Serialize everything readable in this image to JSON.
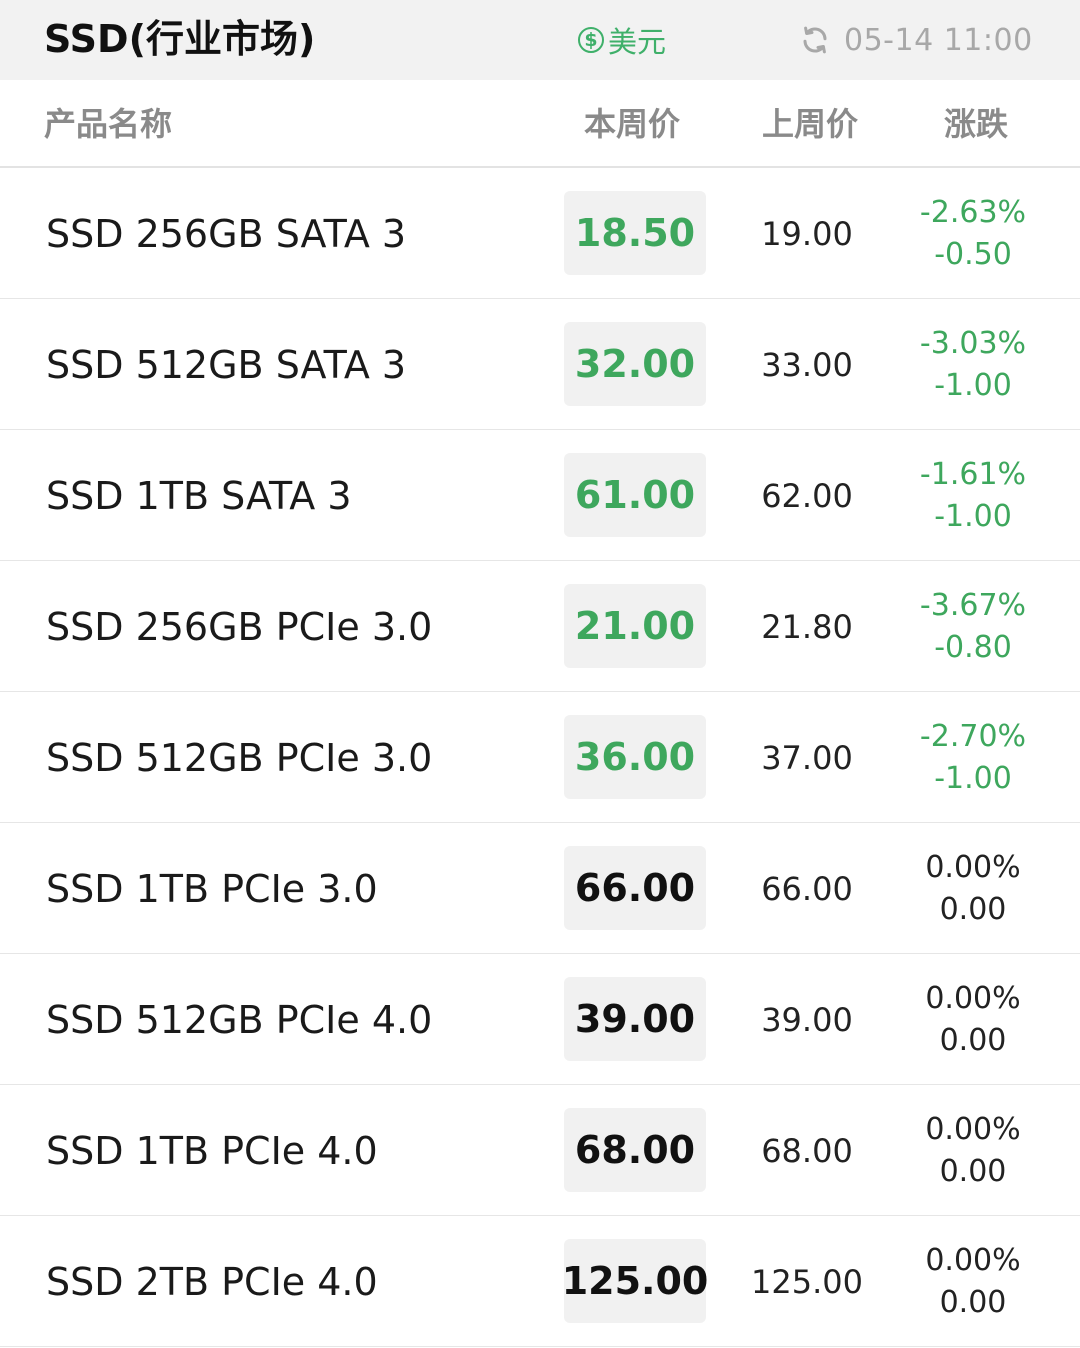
{
  "header": {
    "title": "SSD(行业市场)",
    "currency_symbol": "$",
    "currency_label": "美元",
    "updated_time": "05-14 11:00",
    "refresh_icon": "refresh-icon",
    "currency_icon": "dollar-coin-icon",
    "accent_color": "#3ea75d"
  },
  "columns": {
    "name": "产品名称",
    "this_week": "本周价",
    "last_week": "上周价",
    "change": "涨跌"
  },
  "rows": [
    {
      "name": "SSD 256GB SATA 3",
      "this_week": "18.50",
      "last_week": "19.00",
      "change_pct": "-2.63%",
      "change_abs": "-0.50",
      "trend": "down"
    },
    {
      "name": "SSD 512GB SATA 3",
      "this_week": "32.00",
      "last_week": "33.00",
      "change_pct": "-3.03%",
      "change_abs": "-1.00",
      "trend": "down"
    },
    {
      "name": "SSD 1TB SATA 3",
      "this_week": "61.00",
      "last_week": "62.00",
      "change_pct": "-1.61%",
      "change_abs": "-1.00",
      "trend": "down"
    },
    {
      "name": "SSD 256GB PCIe 3.0",
      "this_week": "21.00",
      "last_week": "21.80",
      "change_pct": "-3.67%",
      "change_abs": "-0.80",
      "trend": "down"
    },
    {
      "name": "SSD 512GB PCIe 3.0",
      "this_week": "36.00",
      "last_week": "37.00",
      "change_pct": "-2.70%",
      "change_abs": "-1.00",
      "trend": "down"
    },
    {
      "name": "SSD 1TB PCIe 3.0",
      "this_week": "66.00",
      "last_week": "66.00",
      "change_pct": "0.00%",
      "change_abs": "0.00",
      "trend": "flat"
    },
    {
      "name": "SSD 512GB PCIe 4.0",
      "this_week": "39.00",
      "last_week": "39.00",
      "change_pct": "0.00%",
      "change_abs": "0.00",
      "trend": "flat"
    },
    {
      "name": "SSD 1TB PCIe 4.0",
      "this_week": "68.00",
      "last_week": "68.00",
      "change_pct": "0.00%",
      "change_abs": "0.00",
      "trend": "flat"
    },
    {
      "name": "SSD 2TB PCIe 4.0",
      "this_week": "125.00",
      "last_week": "125.00",
      "change_pct": "0.00%",
      "change_abs": "0.00",
      "trend": "flat"
    }
  ]
}
